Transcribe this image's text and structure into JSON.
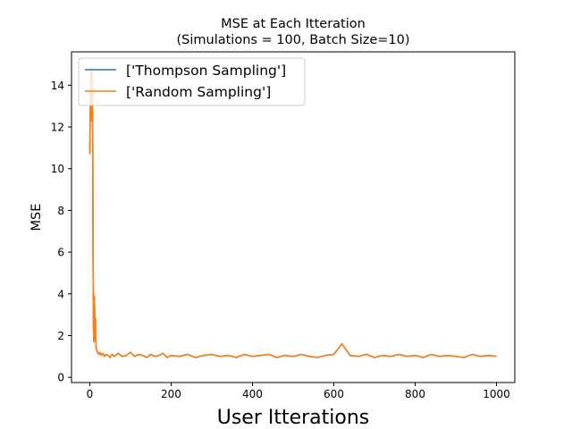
{
  "chart_data": {
    "type": "line",
    "title": "MSE at Each Itteration",
    "subtitle": "(Simulations = 100, Batch Size=10)",
    "xlabel": "User Itterations",
    "ylabel": "MSE",
    "xlim": [
      -45,
      1045
    ],
    "ylim": [
      -0.25,
      15.6
    ],
    "xticks": [
      0,
      200,
      400,
      600,
      800,
      1000
    ],
    "yticks": [
      0,
      2,
      4,
      6,
      8,
      10,
      12,
      14
    ],
    "grid": false,
    "legend_position": "top-left",
    "series": [
      {
        "name": "['Thompson Sampling']",
        "color": "#1f77b4",
        "x": [
          0,
          1,
          2,
          3,
          4,
          5,
          6,
          7,
          8,
          9,
          10,
          11,
          12,
          13,
          14,
          15,
          16,
          17,
          18,
          19,
          20,
          22,
          25,
          28,
          32,
          36,
          40,
          45,
          50,
          55,
          60,
          70,
          80,
          90,
          100,
          110,
          120,
          130,
          140,
          150,
          160,
          170,
          180,
          190,
          200,
          220,
          240,
          260,
          280,
          300,
          320,
          340,
          360,
          380,
          400,
          420,
          440,
          460,
          480,
          500,
          520,
          540,
          560,
          580,
          600,
          620,
          640,
          660,
          680,
          700,
          720,
          740,
          760,
          780,
          800,
          820,
          840,
          860,
          880,
          900,
          920,
          940,
          960,
          980,
          1000
        ],
        "values": [
          10.7,
          12.5,
          13.9,
          14.8,
          13.2,
          12.3,
          14.6,
          12.9,
          6.0,
          2.5,
          1.7,
          3.9,
          3.2,
          1.8,
          2.8,
          1.6,
          1.35,
          1.3,
          1.25,
          1.2,
          1.15,
          1.1,
          1.2,
          1.05,
          1.15,
          1.0,
          1.1,
          1.05,
          0.95,
          1.1,
          1.0,
          1.15,
          1.0,
          1.05,
          1.2,
          1.0,
          1.1,
          1.05,
          0.95,
          1.1,
          1.0,
          1.05,
          1.15,
          0.95,
          1.05,
          1.0,
          1.1,
          0.95,
          1.05,
          1.1,
          1.0,
          1.05,
          0.95,
          1.1,
          1.0,
          1.05,
          1.1,
          0.95,
          1.05,
          1.0,
          1.1,
          1.0,
          0.95,
          1.05,
          1.1,
          1.6,
          1.05,
          1.0,
          1.1,
          0.95,
          1.05,
          1.0,
          1.1,
          1.0,
          1.05,
          0.95,
          1.1,
          1.0,
          1.05,
          1.0,
          0.95,
          1.1,
          1.0,
          1.05,
          1.0
        ]
      },
      {
        "name": "['Random Sampling']",
        "color": "#ff7f0e",
        "x": [
          0,
          1,
          2,
          3,
          4,
          5,
          6,
          7,
          8,
          9,
          10,
          11,
          12,
          13,
          14,
          15,
          16,
          17,
          18,
          19,
          20,
          22,
          25,
          28,
          32,
          36,
          40,
          45,
          50,
          55,
          60,
          70,
          80,
          90,
          100,
          110,
          120,
          130,
          140,
          150,
          160,
          170,
          180,
          190,
          200,
          220,
          240,
          260,
          280,
          300,
          320,
          340,
          360,
          380,
          400,
          420,
          440,
          460,
          480,
          500,
          520,
          540,
          560,
          580,
          600,
          620,
          640,
          660,
          680,
          700,
          720,
          740,
          760,
          780,
          800,
          820,
          840,
          860,
          880,
          900,
          920,
          940,
          960,
          980,
          1000
        ],
        "values": [
          10.7,
          12.5,
          13.9,
          14.8,
          13.2,
          12.3,
          14.6,
          12.9,
          6.0,
          2.5,
          1.7,
          3.9,
          3.2,
          1.8,
          2.8,
          1.6,
          1.35,
          1.3,
          1.25,
          1.2,
          1.15,
          1.1,
          1.2,
          1.05,
          1.15,
          1.0,
          1.1,
          1.05,
          0.95,
          1.1,
          1.0,
          1.15,
          1.0,
          1.05,
          1.2,
          1.0,
          1.1,
          1.05,
          0.95,
          1.1,
          1.0,
          1.05,
          1.15,
          0.95,
          1.05,
          1.0,
          1.1,
          0.95,
          1.05,
          1.1,
          1.0,
          1.05,
          0.95,
          1.1,
          1.0,
          1.05,
          1.1,
          0.95,
          1.05,
          1.0,
          1.1,
          1.0,
          0.95,
          1.05,
          1.1,
          1.6,
          1.05,
          1.0,
          1.1,
          0.95,
          1.05,
          1.0,
          1.1,
          1.0,
          1.05,
          0.95,
          1.1,
          1.0,
          1.05,
          1.0,
          0.95,
          1.1,
          1.0,
          1.05,
          1.0
        ]
      }
    ]
  }
}
